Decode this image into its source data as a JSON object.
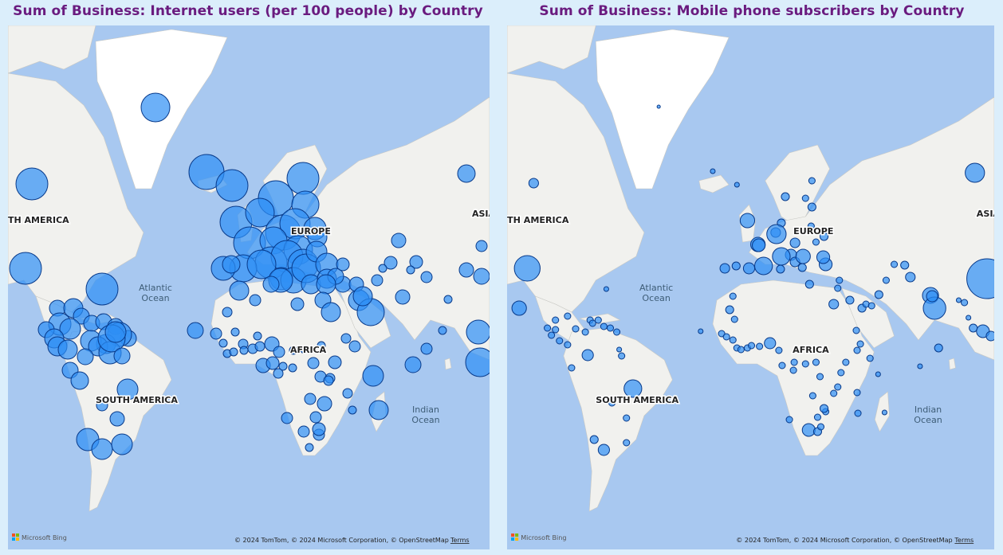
{
  "left_map": {
    "title": "Sum of Business: Internet users (per 100 people) by Country",
    "region_labels": [
      "TH AMERICA",
      "EUROPE",
      "AFRICA",
      "SOUTH AMERICA",
      "ASIA"
    ],
    "ocean_labels": [
      [
        "Atlantic",
        "Ocean"
      ],
      [
        "Indian",
        "Ocean"
      ]
    ],
    "attribution": "© 2024 TomTom, © 2024 Microsoft Corporation, © OpenStreetMap",
    "terms": "Terms",
    "bing": "Microsoft Bing"
  },
  "right_map": {
    "title": "Sum of Business: Mobile phone subscribers by Country",
    "region_labels": [
      "TH AMERICA",
      "EUROPE",
      "AFRICA",
      "SOUTH AMERICA",
      "ASIA"
    ],
    "ocean_labels": [
      [
        "Atlantic",
        "Ocean"
      ],
      [
        "Indian",
        "Ocean"
      ]
    ],
    "attribution": "© 2024 TomTom, © 2024 Microsoft Corporation, © OpenStreetMap",
    "terms": "Terms",
    "bing": "Microsoft Bing"
  },
  "colors": {
    "water": "#a8c8f0",
    "land": "#f1f1ee",
    "ice": "#ffffff",
    "bubble_fill": "#2e8ef5",
    "bubble_stroke": "#083a8a",
    "title": "#6a1b7f"
  },
  "internet_users_bubbles": [
    {
      "loc": "Greenland",
      "v": 60
    },
    {
      "loc": "Iceland",
      "v": 95
    },
    {
      "loc": "Norway",
      "v": 95
    },
    {
      "loc": "Sweden",
      "v": 93
    },
    {
      "loc": "Finland",
      "v": 90
    },
    {
      "loc": "Russia",
      "v": 70
    },
    {
      "loc": "Canada",
      "v": 87
    },
    {
      "loc": "USA",
      "v": 85
    },
    {
      "loc": "Mexico",
      "v": 45
    },
    {
      "loc": "Cuba",
      "v": 25
    },
    {
      "loc": "Haiti",
      "v": 12
    },
    {
      "loc": "Jamaica",
      "v": 40
    },
    {
      "loc": "Venezuela",
      "v": 55
    },
    {
      "loc": "Colombia",
      "v": 55
    },
    {
      "loc": "Brazil",
      "v": 58
    },
    {
      "loc": "Peru",
      "v": 40
    },
    {
      "loc": "Argentina",
      "v": 70
    },
    {
      "loc": "Chile",
      "v": 65
    },
    {
      "loc": "Uruguay",
      "v": 65
    },
    {
      "loc": "UK",
      "v": 90
    },
    {
      "loc": "Ireland",
      "v": 80
    },
    {
      "loc": "France",
      "v": 83
    },
    {
      "loc": "Spain",
      "v": 75
    },
    {
      "loc": "Portugal",
      "v": 65
    },
    {
      "loc": "Germany",
      "v": 86
    },
    {
      "loc": "Poland",
      "v": 65
    },
    {
      "loc": "Italy",
      "v": 58
    },
    {
      "loc": "Greece",
      "v": 60
    },
    {
      "loc": "Turkey",
      "v": 50
    },
    {
      "loc": "Morocco",
      "v": 55
    },
    {
      "loc": "Egypt",
      "v": 35
    },
    {
      "loc": "Saudi Arabia",
      "v": 65
    },
    {
      "loc": "Iran",
      "v": 40
    },
    {
      "loc": "Kazakhstan",
      "v": 55
    },
    {
      "loc": "Nigeria",
      "v": 42
    },
    {
      "loc": "Kenya",
      "v": 40
    },
    {
      "loc": "South Africa",
      "v": 48
    },
    {
      "loc": "Madagascar",
      "v": 5
    },
    {
      "loc": "India",
      "v": 18
    },
    {
      "loc": "China",
      "v": 50
    },
    {
      "loc": "Malaysia",
      "v": 65
    }
  ],
  "mobile_subscribers_bubbles": [
    {
      "loc": "Greenland",
      "v": 0.06
    },
    {
      "loc": "Iceland",
      "v": 0.4
    },
    {
      "loc": "Canada",
      "v": 30
    },
    {
      "loc": "USA",
      "v": 320
    },
    {
      "loc": "Mexico",
      "v": 100
    },
    {
      "loc": "Brazil",
      "v": 280
    },
    {
      "loc": "Argentina",
      "v": 60
    },
    {
      "loc": "UK",
      "v": 80
    },
    {
      "loc": "France",
      "v": 65
    },
    {
      "loc": "Germany",
      "v": 110
    },
    {
      "loc": "Italy",
      "v": 95
    },
    {
      "loc": "Spain",
      "v": 55
    },
    {
      "loc": "Poland",
      "v": 55
    },
    {
      "loc": "Russia",
      "v": 230
    },
    {
      "loc": "Turkey",
      "v": 70
    },
    {
      "loc": "Egypt",
      "v": 95
    },
    {
      "loc": "Iran",
      "v": 75
    },
    {
      "loc": "Nigeria",
      "v": 140
    },
    {
      "loc": "South Africa",
      "v": 80
    },
    {
      "loc": "India",
      "v": 900
    },
    {
      "loc": "China",
      "v": 1300
    },
    {
      "loc": "Pakistan",
      "v": 130
    }
  ]
}
